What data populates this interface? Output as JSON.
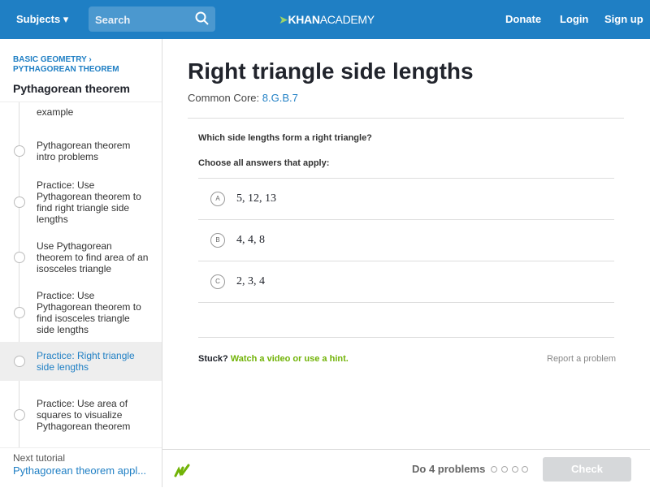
{
  "header": {
    "subjects": "Subjects",
    "search": "Search",
    "logo_bold": "KHAN",
    "logo_light": "ACADEMY",
    "donate": "Donate",
    "login": "Login",
    "signup": "Sign up"
  },
  "sidebar": {
    "breadcrumb_1": "BASIC GEOMETRY",
    "breadcrumb_2": "PYTHAGOREAN THEOREM",
    "title": "Pythagorean theorem",
    "items": [
      "example",
      "Pythagorean theorem intro problems",
      "Practice: Use Pythagorean theorem to find right triangle side lengths",
      "Use Pythagorean theorem to find area of an isosceles triangle",
      "Practice: Use Pythagorean theorem to find isosceles triangle side lengths",
      "Practice: Right triangle side lengths",
      "Practice: Use area of squares to visualize Pythagorean theorem"
    ],
    "next_label": "Next tutorial",
    "next_title": "Pythagorean theorem appl..."
  },
  "main": {
    "title": "Right triangle side lengths",
    "common_core_label": "Common Core:",
    "common_core_code": "8.G.B.7",
    "question": "Which side lengths form a right triangle?",
    "instruction": "Choose all answers that apply:",
    "choices": [
      {
        "letter": "A",
        "text": "5, 12, 13"
      },
      {
        "letter": "B",
        "text": "4, 4, 8"
      },
      {
        "letter": "C",
        "text": "2, 3, 4"
      }
    ],
    "stuck": "Stuck?",
    "help": "Watch a video or use a hint.",
    "report": "Report a problem"
  },
  "footer": {
    "progress": "Do 4 problems",
    "check": "Check"
  }
}
